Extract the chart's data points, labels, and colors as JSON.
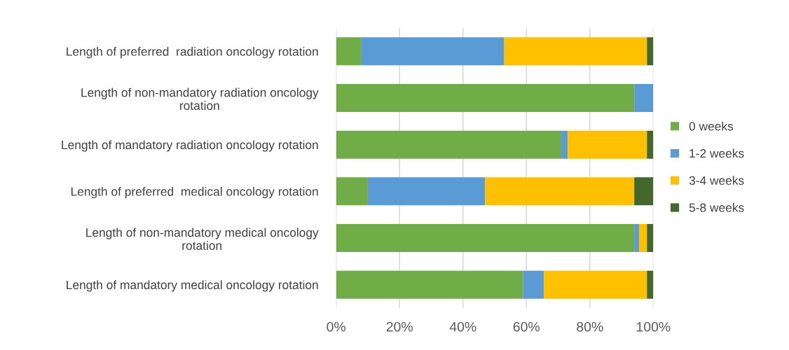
{
  "chart_data": {
    "type": "bar",
    "orientation": "horizontal",
    "stacked": true,
    "legend": "right",
    "grid": "x",
    "categories": [
      "Length of preferred  radiation oncology rotation",
      "Length of non-mandatory radiation oncology\nrotation",
      "Length of mandatory radiation oncology rotation",
      "Length of preferred  medical oncology rotation",
      "Length of non-mandatory medical oncology\nrotation",
      "Length of mandatory medical oncology rotation"
    ],
    "xlim": [
      0,
      100
    ],
    "xticks": [
      {
        "value": 0,
        "label": "0%"
      },
      {
        "value": 20,
        "label": "20%"
      },
      {
        "value": 40,
        "label": "40%"
      },
      {
        "value": 60,
        "label": "60%"
      },
      {
        "value": 80,
        "label": "80%"
      },
      {
        "value": 100,
        "label": "100%"
      }
    ],
    "series": [
      {
        "name": "0 weeks",
        "color": "#70ad47",
        "values": [
          8,
          94,
          71,
          10,
          94,
          59
        ]
      },
      {
        "name": "1-2 weeks",
        "color": "#5b9bd5",
        "values": [
          45,
          6,
          2,
          37,
          1.5,
          6.5
        ]
      },
      {
        "name": "3-4 weeks",
        "color": "#ffc000",
        "values": [
          45,
          0,
          25,
          47,
          2.5,
          32.5
        ]
      },
      {
        "name": "5-8 weeks",
        "color": "#43682b",
        "values": [
          2,
          0,
          2,
          6,
          2,
          2
        ]
      }
    ]
  }
}
